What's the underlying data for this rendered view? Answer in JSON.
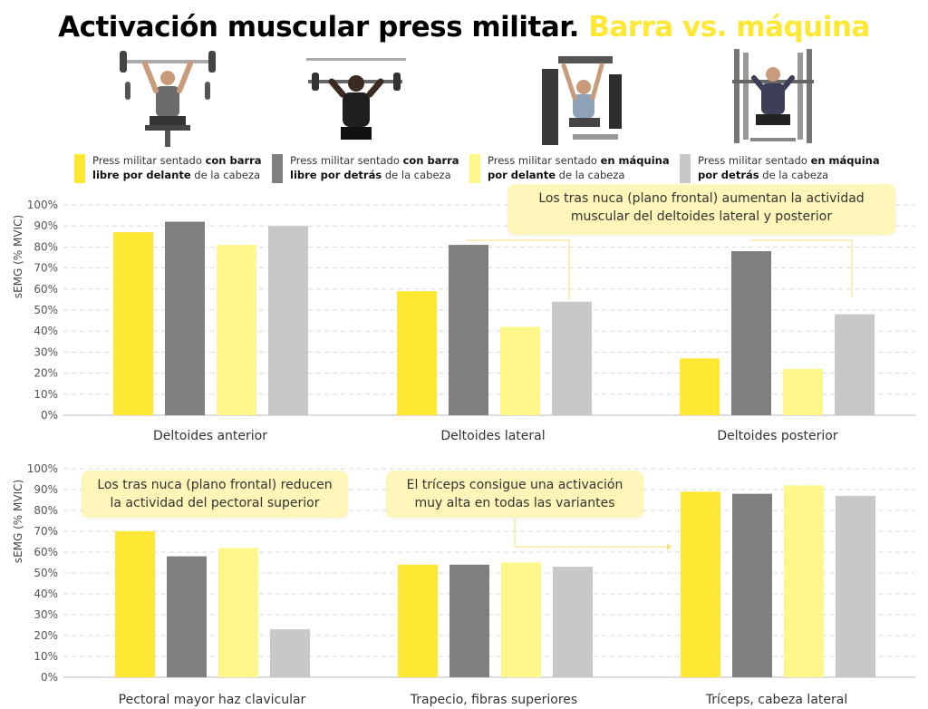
{
  "title_main": "Activación muscular press militar.",
  "title_accent": "Barra vs. máquina",
  "colors": {
    "barra_delante": "#ffe833",
    "barra_detras": "#7f7f7f",
    "maquina_delante": "#fff78a",
    "maquina_detras": "#c8c8c8",
    "accent": "#ffe833",
    "callout_bg": "#fdf6b8"
  },
  "legend": [
    {
      "pre": "Press militar sentado ",
      "bold": "con barra libre por delante",
      "post": " de la cabeza",
      "line1": "Press militar sentado ",
      "line1_bold": "con barra",
      "line2_bold": "libre por delante",
      "line2": " de la cabeza",
      "color_key": "barra_delante",
      "photo_icon": "front-barbell-press-photo-icon"
    },
    {
      "line1": "Press militar sentado ",
      "line1_bold": "con barra",
      "line2_bold": "libre por detrás",
      "line2": " de la cabeza",
      "color_key": "barra_detras",
      "photo_icon": "behind-neck-barbell-press-photo-icon"
    },
    {
      "line1": "Press militar sentado ",
      "line1_bold": "en máquina",
      "line2_bold": "por delante",
      "line2": " de la cabeza",
      "color_key": "maquina_delante",
      "photo_icon": "front-machine-press-photo-icon"
    },
    {
      "line1": "Press militar sentado ",
      "line1_bold": "en máquina",
      "line2_bold": "por detrás",
      "line2": " de la cabeza",
      "color_key": "maquina_detras",
      "photo_icon": "behind-neck-machine-press-photo-icon"
    }
  ],
  "callouts": {
    "top": {
      "line1": "Los tras nuca (plano frontal) aumentan la actividad",
      "line2": "muscular del deltoides lateral y posterior"
    },
    "pectoral": {
      "line1": "Los tras nuca (plano frontal) reducen",
      "line2": "la actividad del pectoral superior"
    },
    "triceps": {
      "line1": "El tríceps consigue una activación",
      "line2": "muy alta en todas las variantes"
    }
  },
  "chart_data": [
    {
      "type": "bar",
      "ylabel": "sEMG (% MVIC)",
      "ylim": [
        0,
        100
      ],
      "yticks": [
        "0%",
        "10%",
        "20%",
        "30%",
        "40%",
        "50%",
        "60%",
        "70%",
        "80%",
        "90%",
        "100%"
      ],
      "grid": true,
      "categories": [
        "Deltoides anterior",
        "Deltoides lateral",
        "Deltoides posterior"
      ],
      "series": [
        {
          "name": "Press militar sentado con barra libre por delante de la cabeza",
          "color_key": "barra_delante",
          "values": [
            87,
            59,
            27
          ]
        },
        {
          "name": "Press militar sentado con barra libre por detrás de la cabeza",
          "color_key": "barra_detras",
          "values": [
            92,
            81,
            78
          ]
        },
        {
          "name": "Press militar sentado en máquina por delante de la cabeza",
          "color_key": "maquina_delante",
          "values": [
            81,
            42,
            22
          ]
        },
        {
          "name": "Press militar sentado en máquina por detrás de la cabeza",
          "color_key": "maquina_detras",
          "values": [
            90,
            54,
            48
          ]
        }
      ]
    },
    {
      "type": "bar",
      "ylabel": "sEMG (% MVIC)",
      "ylim": [
        0,
        100
      ],
      "yticks": [
        "0%",
        "10%",
        "20%",
        "30%",
        "40%",
        "50%",
        "60%",
        "70%",
        "80%",
        "90%",
        "100%"
      ],
      "grid": true,
      "categories": [
        "Pectoral mayor haz clavicular",
        "Trapecio, fibras superiores",
        "Tríceps, cabeza lateral"
      ],
      "series": [
        {
          "name": "Press militar sentado con barra libre por delante de la cabeza",
          "color_key": "barra_delante",
          "values": [
            70,
            54,
            89
          ]
        },
        {
          "name": "Press militar sentado con barra libre por detrás de la cabeza",
          "color_key": "barra_detras",
          "values": [
            58,
            54,
            88
          ]
        },
        {
          "name": "Press militar sentado en máquina por delante de la cabeza",
          "color_key": "maquina_delante",
          "values": [
            62,
            55,
            92
          ]
        },
        {
          "name": "Press militar sentado en máquina por detrás de la cabeza",
          "color_key": "maquina_detras",
          "values": [
            23,
            53,
            87
          ]
        }
      ]
    }
  ]
}
